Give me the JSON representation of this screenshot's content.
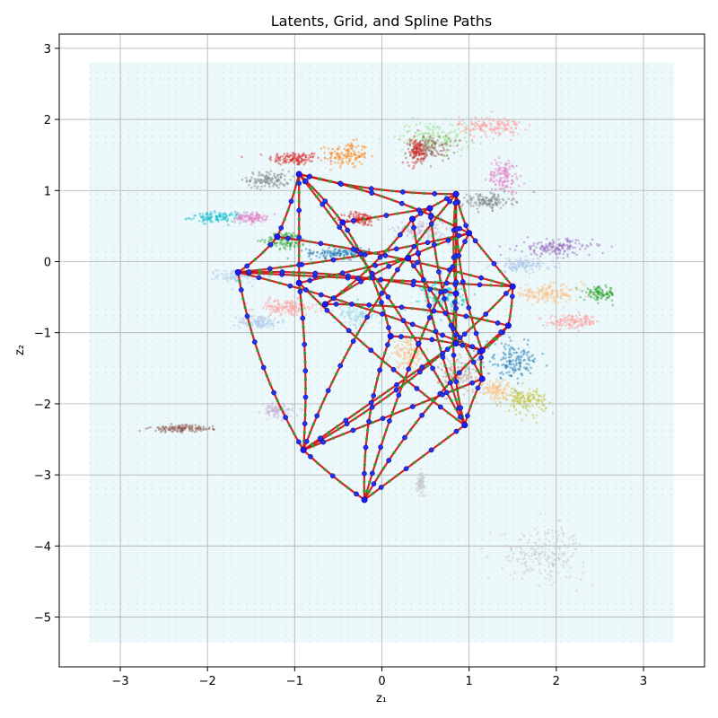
{
  "chart_data": {
    "type": "scatter",
    "title": "Latents, Grid, and Spline Paths",
    "xlabel": "z₁",
    "ylabel": "z₂",
    "xlim": [
      -3.7,
      3.7
    ],
    "ylim": [
      -5.7,
      3.2
    ],
    "xticks": [
      -3,
      -2,
      -1,
      0,
      1,
      2,
      3
    ],
    "yticks": [
      -5,
      -4,
      -3,
      -2,
      -1,
      0,
      1,
      2,
      3
    ],
    "grid": true,
    "background_grid": {
      "x_range": [
        -3.35,
        3.35
      ],
      "y_range": [
        -5.35,
        2.8
      ],
      "color": "#a8dde8"
    },
    "latent_clusters": [
      {
        "center": [
          -1.0,
          1.45
        ],
        "spread": [
          0.25,
          0.08
        ],
        "color": "#d62728"
      },
      {
        "center": [
          -0.4,
          1.5
        ],
        "spread": [
          0.2,
          0.15
        ],
        "color": "#ff7f0e"
      },
      {
        "center": [
          -1.3,
          1.15
        ],
        "spread": [
          0.2,
          0.1
        ],
        "color": "#7f7f7f"
      },
      {
        "center": [
          -1.9,
          0.62
        ],
        "spread": [
          0.25,
          0.06
        ],
        "color": "#17becf"
      },
      {
        "center": [
          -1.5,
          0.62
        ],
        "spread": [
          0.15,
          0.06
        ],
        "color": "#e377c2"
      },
      {
        "center": [
          -1.65,
          -0.2
        ],
        "spread": [
          0.2,
          0.08
        ],
        "color": "#aec7e8"
      },
      {
        "center": [
          -1.1,
          -0.65
        ],
        "spread": [
          0.3,
          0.1
        ],
        "color": "#ff9896"
      },
      {
        "center": [
          -1.4,
          -0.85
        ],
        "spread": [
          0.2,
          0.08
        ],
        "color": "#aec7e8"
      },
      {
        "center": [
          -0.25,
          0.6
        ],
        "spread": [
          0.15,
          0.08
        ],
        "color": "#d62728"
      },
      {
        "center": [
          -1.1,
          0.3
        ],
        "spread": [
          0.2,
          0.1
        ],
        "color": "#2ca02c"
      },
      {
        "center": [
          -0.5,
          0.12
        ],
        "spread": [
          0.3,
          0.06
        ],
        "color": "#1f77b4"
      },
      {
        "center": [
          -0.3,
          -0.75
        ],
        "spread": [
          0.2,
          0.15
        ],
        "color": "#9edae5"
      },
      {
        "center": [
          0.45,
          0.45
        ],
        "spread": [
          0.25,
          0.12
        ],
        "color": "#c5b0d5"
      },
      {
        "center": [
          0.6,
          1.75
        ],
        "spread": [
          0.35,
          0.18
        ],
        "color": "#98df8a"
      },
      {
        "center": [
          1.25,
          1.9
        ],
        "spread": [
          0.3,
          0.12
        ],
        "color": "#ff9896"
      },
      {
        "center": [
          0.55,
          1.6
        ],
        "spread": [
          0.2,
          0.15
        ],
        "color": "#8c564b"
      },
      {
        "center": [
          0.4,
          1.55
        ],
        "spread": [
          0.1,
          0.15
        ],
        "color": "#d62728"
      },
      {
        "center": [
          1.4,
          1.2
        ],
        "spread": [
          0.15,
          0.2
        ],
        "color": "#e377c2"
      },
      {
        "center": [
          1.2,
          0.85
        ],
        "spread": [
          0.25,
          0.1
        ],
        "color": "#7f7f7f"
      },
      {
        "center": [
          2.0,
          0.2
        ],
        "spread": [
          0.35,
          0.1
        ],
        "color": "#9467bd"
      },
      {
        "center": [
          1.6,
          -0.05
        ],
        "spread": [
          0.3,
          0.08
        ],
        "color": "#aec7e8"
      },
      {
        "center": [
          1.9,
          -0.45
        ],
        "spread": [
          0.35,
          0.1
        ],
        "color": "#ffbb78"
      },
      {
        "center": [
          2.5,
          -0.45
        ],
        "spread": [
          0.15,
          0.08
        ],
        "color": "#2ca02c"
      },
      {
        "center": [
          2.2,
          -0.85
        ],
        "spread": [
          0.25,
          0.08
        ],
        "color": "#ff9896"
      },
      {
        "center": [
          1.5,
          -1.4
        ],
        "spread": [
          0.25,
          0.2
        ],
        "color": "#1f77b4"
      },
      {
        "center": [
          1.65,
          -1.95
        ],
        "spread": [
          0.2,
          0.15
        ],
        "color": "#bcbd22"
      },
      {
        "center": [
          1.3,
          -1.8
        ],
        "spread": [
          0.15,
          0.12
        ],
        "color": "#ffbb78"
      },
      {
        "center": [
          0.9,
          -1.6
        ],
        "spread": [
          0.2,
          0.2
        ],
        "color": "#c49c94"
      },
      {
        "center": [
          0.7,
          -0.5
        ],
        "spread": [
          0.2,
          0.2
        ],
        "color": "#17becf"
      },
      {
        "center": [
          -2.3,
          -2.35
        ],
        "spread": [
          0.3,
          0.04
        ],
        "color": "#8c564b"
      },
      {
        "center": [
          -1.2,
          -2.1
        ],
        "spread": [
          0.15,
          0.08
        ],
        "color": "#c5b0d5"
      },
      {
        "center": [
          0.3,
          -1.3
        ],
        "spread": [
          0.15,
          0.2
        ],
        "color": "#ffbb78"
      },
      {
        "center": [
          1.85,
          -4.1
        ],
        "spread": [
          0.4,
          0.3
        ],
        "color": "#c7c7c7"
      },
      {
        "center": [
          0.45,
          -3.1
        ],
        "spread": [
          0.04,
          0.12
        ],
        "color": "#c7c7c7"
      }
    ],
    "path_nodes": [
      [
        -0.95,
        1.23
      ],
      [
        0.85,
        0.95
      ],
      [
        1.0,
        0.4
      ],
      [
        1.5,
        -0.35
      ],
      [
        1.45,
        -0.9
      ],
      [
        1.15,
        -1.25
      ],
      [
        1.15,
        -1.65
      ],
      [
        0.95,
        -2.3
      ],
      [
        -0.9,
        -2.65
      ],
      [
        -0.2,
        -3.35
      ],
      [
        -1.65,
        -0.15
      ],
      [
        -0.95,
        -0.3
      ],
      [
        0.35,
        0.6
      ],
      [
        0.1,
        -1.05
      ],
      [
        -0.45,
        0.55
      ],
      [
        -1.2,
        0.35
      ],
      [
        0.85,
        -0.45
      ],
      [
        0.85,
        -1.15
      ],
      [
        0.3,
        0.05
      ],
      [
        -0.65,
        -0.6
      ],
      [
        0.55,
        0.75
      ]
    ],
    "path_edges": [
      [
        0,
        1
      ],
      [
        1,
        2
      ],
      [
        2,
        3
      ],
      [
        3,
        4
      ],
      [
        4,
        5
      ],
      [
        5,
        6
      ],
      [
        6,
        7
      ],
      [
        7,
        9
      ],
      [
        9,
        8
      ],
      [
        8,
        10
      ],
      [
        10,
        15
      ],
      [
        15,
        0
      ],
      [
        10,
        3
      ],
      [
        0,
        7
      ],
      [
        0,
        2
      ],
      [
        1,
        8
      ],
      [
        1,
        16
      ],
      [
        1,
        17
      ],
      [
        2,
        10
      ],
      [
        3,
        8
      ],
      [
        4,
        9
      ],
      [
        5,
        10
      ],
      [
        6,
        8
      ],
      [
        0,
        14
      ],
      [
        14,
        13
      ],
      [
        13,
        9
      ],
      [
        11,
        7
      ],
      [
        11,
        18
      ],
      [
        18,
        6
      ],
      [
        19,
        4
      ],
      [
        19,
        12
      ],
      [
        12,
        7
      ],
      [
        0,
        11
      ],
      [
        11,
        8
      ],
      [
        10,
        16
      ],
      [
        16,
        7
      ],
      [
        20,
        17
      ],
      [
        20,
        14
      ],
      [
        15,
        3
      ],
      [
        13,
        5
      ],
      [
        1,
        5
      ],
      [
        2,
        9
      ],
      [
        17,
        8
      ],
      [
        12,
        1
      ],
      [
        19,
        2
      ]
    ],
    "series": [
      {
        "role": "latents",
        "color": "multiple"
      },
      {
        "role": "grid",
        "color": "#a8dde8"
      },
      {
        "role": "spline",
        "color": "#d62728"
      },
      {
        "role": "spline-samples",
        "color": "#2ca02c"
      },
      {
        "role": "control-points",
        "color": "#0000ff"
      }
    ]
  }
}
